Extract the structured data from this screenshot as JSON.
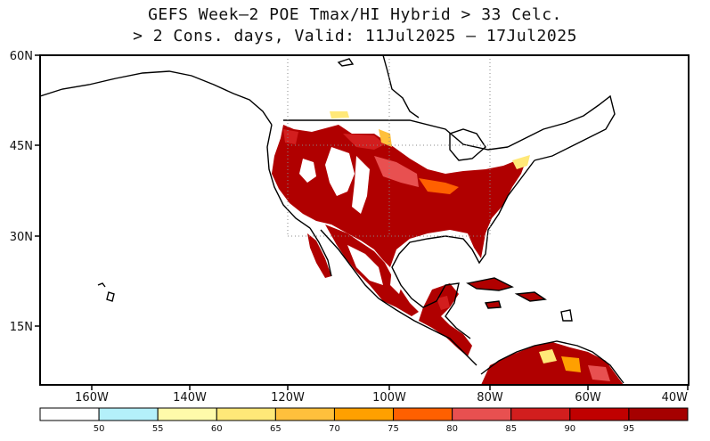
{
  "title": {
    "line1": "GEFS Week–2 POE Tmax/HI Hybrid > 33 Celc.",
    "line2": "> 2 Cons. days, Valid: 11Jul2025 – 17Jul2025"
  },
  "axes": {
    "lat_labels": [
      "60N",
      "45N",
      "30N",
      "15N"
    ],
    "lon_labels": [
      "160W",
      "140W",
      "120W",
      "100W",
      "80W",
      "60W",
      "40W"
    ]
  },
  "colorbar": {
    "labels": [
      "50",
      "55",
      "60",
      "65",
      "70",
      "75",
      "80",
      "85",
      "90",
      "95"
    ],
    "colors": [
      "#ffffff",
      "#b4f0fa",
      "#fffaaa",
      "#ffe878",
      "#ffc03c",
      "#ffa000",
      "#ff6000",
      "#e85050",
      "#d21e1e",
      "#c00000",
      "#a50000"
    ]
  },
  "map_colors": {
    "land_fill_low": "#ffffff",
    "heat_90": "#c01010",
    "heat_95": "#a50000",
    "heat_85": "#e04040",
    "heat_75": "#ff8000",
    "heat_65": "#ffd060"
  }
}
